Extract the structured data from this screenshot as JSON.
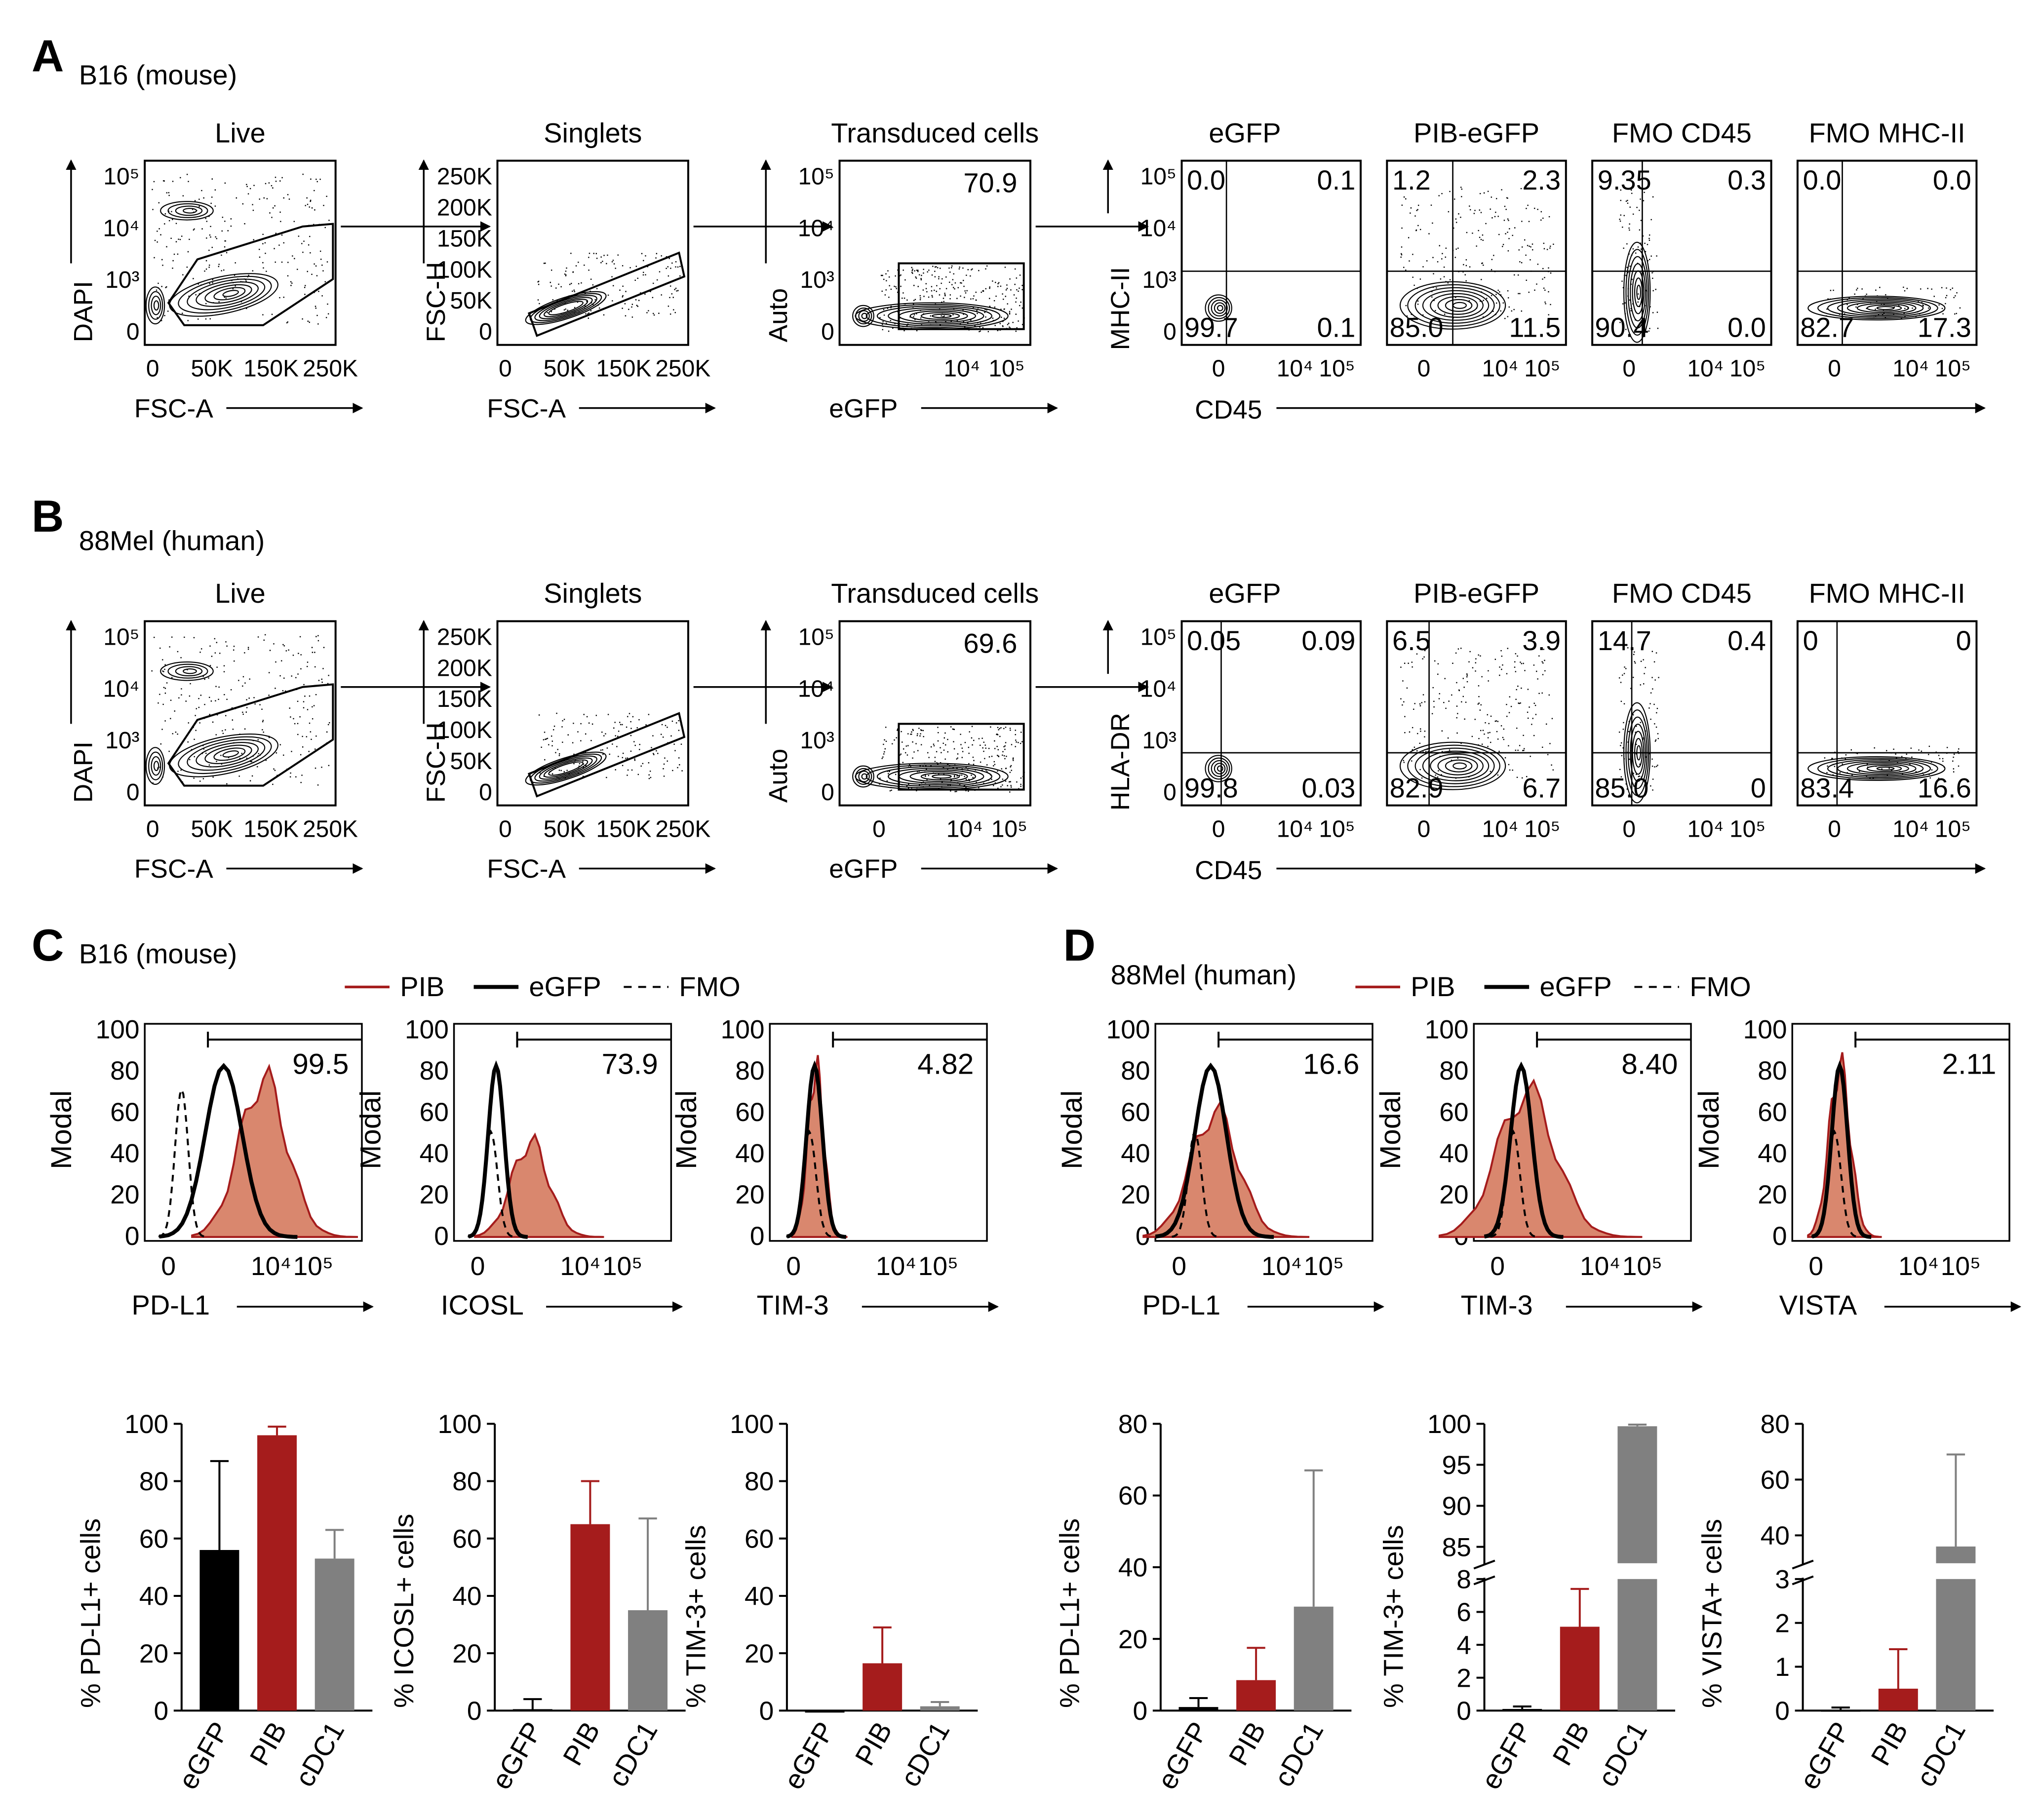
{
  "panels": {
    "A": {
      "letter": "A",
      "subtitle": "B16 (mouse)",
      "gates": [
        {
          "title": "Live",
          "xlabel": "FSC-A",
          "ylabel": "DAPI",
          "xticks": [
            "0",
            "50K",
            "150K",
            "250K"
          ],
          "yticks": [
            "10⁵",
            "10⁴",
            "10³",
            "0"
          ]
        },
        {
          "title": "Singlets",
          "xlabel": "FSC-A",
          "ylabel": "FSC-H",
          "xticks": [
            "0",
            "50K",
            "150K",
            "250K"
          ],
          "yticks": [
            "250K",
            "200K",
            "150K",
            "100K",
            "50K",
            "0"
          ]
        },
        {
          "title": "Transduced cells",
          "xlabel": "eGFP",
          "ylabel": "Auto",
          "value": "70.9",
          "xticks": [
            "10⁴",
            "10⁵"
          ],
          "yticks": [
            "10⁵",
            "10⁴",
            "10³",
            "0"
          ]
        }
      ],
      "quad_ylabel": "MHC-II",
      "quad_xlabel": "CD45",
      "quad_yticks": [
        "10⁵",
        "10⁴",
        "10³",
        "0"
      ],
      "quad_xticks": [
        "0",
        "10⁴",
        "10⁵"
      ],
      "quadrants": [
        {
          "title": "eGFP",
          "ul": "0.0",
          "ur": "0.1",
          "ll": "99.7",
          "lr": "0.1"
        },
        {
          "title": "PIB-eGFP",
          "ul": "1.2",
          "ur": "2.3",
          "ll": "85.0",
          "lr": "11.5"
        },
        {
          "title": "FMO CD45",
          "ul": "9.35",
          "ur": "0.3",
          "ll": "90.4",
          "lr": "0.0"
        },
        {
          "title": "FMO MHC-II",
          "ul": "0.0",
          "ur": "0.0",
          "ll": "82.7",
          "lr": "17.3"
        }
      ]
    },
    "B": {
      "letter": "B",
      "subtitle": "88Mel (human)",
      "gates": [
        {
          "title": "Live",
          "xlabel": "FSC-A",
          "ylabel": "DAPI",
          "xticks": [
            "0",
            "50K",
            "150K",
            "250K"
          ],
          "yticks": [
            "10⁵",
            "10⁴",
            "10³",
            "0"
          ]
        },
        {
          "title": "Singlets",
          "xlabel": "FSC-A",
          "ylabel": "FSC-H",
          "xticks": [
            "0",
            "50K",
            "150K",
            "250K"
          ],
          "yticks": [
            "250K",
            "200K",
            "150K",
            "100K",
            "50K",
            "0"
          ]
        },
        {
          "title": "Transduced cells",
          "xlabel": "eGFP",
          "ylabel": "Auto",
          "value": "69.6",
          "xticks": [
            "0",
            "10⁴",
            "10⁵"
          ],
          "yticks": [
            "10⁵",
            "10⁴",
            "10³",
            "0"
          ]
        }
      ],
      "quad_ylabel": "HLA-DR",
      "quad_xlabel": "CD45",
      "quad_yticks": [
        "10⁵",
        "10⁴",
        "10³",
        "0"
      ],
      "quad_xticks": [
        "0",
        "10⁴",
        "10⁵"
      ],
      "quadrants": [
        {
          "title": "eGFP",
          "ul": "0.05",
          "ur": "0.09",
          "ll": "99.8",
          "lr": "0.03"
        },
        {
          "title": "PIB-eGFP",
          "ul": "6.5",
          "ur": "3.9",
          "ll": "82.9",
          "lr": "6.7"
        },
        {
          "title": "FMO CD45",
          "ul": "14.7",
          "ur": "0.4",
          "ll": "85.0",
          "lr": "0"
        },
        {
          "title": "FMO MHC-II",
          "ul": "0",
          "ur": "0",
          "ll": "83.4",
          "lr": "16.6"
        }
      ]
    },
    "C": {
      "letter": "C",
      "subtitle": "B16 (mouse)",
      "legend": [
        "PIB",
        "eGFP",
        "FMO"
      ],
      "hist_ylabel": "Modal",
      "hist_yticks": [
        "100",
        "80",
        "60",
        "40",
        "20",
        "0"
      ],
      "hist_xticks": [
        "0",
        "10⁴",
        "10⁵"
      ],
      "histograms": [
        {
          "xlabel": "PD-L1",
          "value": "99.5"
        },
        {
          "xlabel": "ICOSL",
          "value": "73.9"
        },
        {
          "xlabel": "TIM-3",
          "value": "4.82"
        }
      ]
    },
    "D": {
      "letter": "D",
      "subtitle": "88Mel (human)",
      "legend": [
        "PIB",
        "eGFP",
        "FMO"
      ],
      "hist_ylabel": "Modal",
      "hist_yticks": [
        "100",
        "80",
        "60",
        "40",
        "20",
        "0"
      ],
      "hist_xticks": [
        "0",
        "10⁴",
        "10⁵"
      ],
      "histograms": [
        {
          "xlabel": "PD-L1",
          "value": "16.6"
        },
        {
          "xlabel": "TIM-3",
          "value": "8.40"
        },
        {
          "xlabel": "VISTA",
          "value": "2.11"
        }
      ]
    }
  },
  "colors": {
    "pib": "#a51c1c",
    "pib_fill": "#d9876e",
    "egfp": "#000000",
    "cdc1": "#808080"
  },
  "chart_data": [
    {
      "type": "bar",
      "panel": "C",
      "categories": [
        "eGFP",
        "PIB",
        "cDC1"
      ],
      "values": [
        56,
        96,
        53
      ],
      "errors": [
        31,
        3,
        10
      ],
      "ylabel": "% PD-L1+ cells",
      "ylim": [
        0,
        100
      ],
      "yticks": [
        "0",
        "20",
        "40",
        "60",
        "80",
        "100"
      ]
    },
    {
      "type": "bar",
      "panel": "C",
      "categories": [
        "eGFP",
        "PIB",
        "cDC1"
      ],
      "values": [
        0.5,
        65,
        35
      ],
      "errors": [
        3.5,
        15,
        32
      ],
      "ylabel": "% ICOSL+ cells",
      "ylim": [
        0,
        100
      ],
      "yticks": [
        "0",
        "20",
        "40",
        "60",
        "80",
        "100"
      ]
    },
    {
      "type": "bar",
      "panel": "C",
      "categories": [
        "eGFP",
        "PIB",
        "cDC1"
      ],
      "values": [
        0,
        16.5,
        1.5
      ],
      "errors": [
        0,
        12.5,
        1.5
      ],
      "ylabel": "% TIM-3+ cells",
      "ylim": [
        0,
        100
      ],
      "yticks": [
        "0",
        "20",
        "40",
        "60",
        "80",
        "100"
      ]
    },
    {
      "type": "bar",
      "panel": "D",
      "categories": [
        "eGFP",
        "PIB",
        "cDC1"
      ],
      "values": [
        1,
        8.5,
        29
      ],
      "errors": [
        2.5,
        9,
        38
      ],
      "ylabel": "% PD-L1+ cells",
      "ylim": [
        0,
        80
      ],
      "yticks": [
        "0",
        "20",
        "40",
        "60",
        "80"
      ]
    },
    {
      "type": "bar",
      "panel": "D",
      "categories": [
        "eGFP",
        "PIB",
        "cDC1"
      ],
      "values": [
        0.1,
        5.1,
        99.7
      ],
      "errors": [
        0.15,
        2.3,
        0.2
      ],
      "ylabel": "% TIM-3+ cells",
      "axis_break": true,
      "yticks_low": [
        "0",
        "2",
        "4",
        "6",
        "8"
      ],
      "yticks_high": [
        "85",
        "90",
        "95",
        "100"
      ]
    },
    {
      "type": "bar",
      "panel": "D",
      "categories": [
        "eGFP",
        "PIB",
        "cDC1"
      ],
      "values": [
        0.02,
        0.5,
        36
      ],
      "errors": [
        0.05,
        0.9,
        33
      ],
      "ylabel": "% VISTA+ cells",
      "axis_break": true,
      "yticks_low": [
        "0",
        "1",
        "2",
        "3"
      ],
      "yticks_high": [
        "40",
        "60",
        "80"
      ]
    }
  ]
}
